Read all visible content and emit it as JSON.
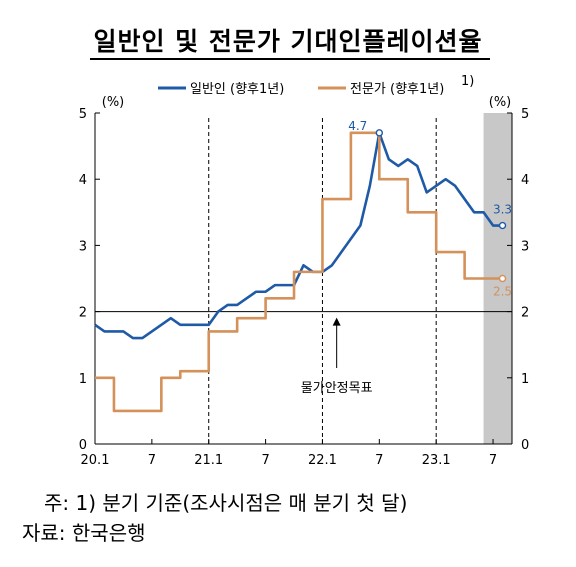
{
  "title": "일반인 및 전문가 기대인플레이션율",
  "notes": {
    "note1": "주: 1) 분기 기준(조사시점은 매 분기 첫 달)",
    "note2": "자료: 한국은행"
  },
  "colors": {
    "general": "#1f5aa6",
    "expert": "#d4915a",
    "shade": "#c8c8c8"
  },
  "chart_data": {
    "type": "line",
    "x_tick_labels": [
      "20.1",
      "7",
      "21.1",
      "7",
      "22.1",
      "7",
      "23.1",
      "7"
    ],
    "x_tick_months": [
      0,
      6,
      12,
      18,
      24,
      30,
      36,
      42
    ],
    "xlim_months": [
      0,
      44
    ],
    "ylim": [
      0,
      5
    ],
    "y_ticks": [
      "0",
      "1",
      "2",
      "3",
      "4",
      "5"
    ],
    "ylabel_left": "(%)",
    "ylabel_right": "(%)",
    "legend_position": "top",
    "reference_line": {
      "y": 2,
      "label": "물가안정목표"
    },
    "shaded_region_months": [
      41,
      44
    ],
    "series": [
      {
        "name": "일반인 (향후1년)",
        "step": false,
        "points": [
          [
            0,
            1.8
          ],
          [
            1,
            1.7
          ],
          [
            2,
            1.7
          ],
          [
            3,
            1.7
          ],
          [
            4,
            1.6
          ],
          [
            5,
            1.6
          ],
          [
            6,
            1.7
          ],
          [
            7,
            1.8
          ],
          [
            8,
            1.9
          ],
          [
            9,
            1.8
          ],
          [
            10,
            1.8
          ],
          [
            11,
            1.8
          ],
          [
            12,
            1.8
          ],
          [
            13,
            2.0
          ],
          [
            14,
            2.1
          ],
          [
            15,
            2.1
          ],
          [
            16,
            2.2
          ],
          [
            17,
            2.3
          ],
          [
            18,
            2.3
          ],
          [
            19,
            2.4
          ],
          [
            20,
            2.4
          ],
          [
            21,
            2.4
          ],
          [
            22,
            2.7
          ],
          [
            23,
            2.6
          ],
          [
            24,
            2.6
          ],
          [
            25,
            2.7
          ],
          [
            26,
            2.9
          ],
          [
            27,
            3.1
          ],
          [
            28,
            3.3
          ],
          [
            29,
            3.9
          ],
          [
            30,
            4.7
          ],
          [
            31,
            4.3
          ],
          [
            32,
            4.2
          ],
          [
            33,
            4.3
          ],
          [
            34,
            4.2
          ],
          [
            35,
            3.8
          ],
          [
            36,
            3.9
          ],
          [
            37,
            4.0
          ],
          [
            38,
            3.9
          ],
          [
            39,
            3.7
          ],
          [
            40,
            3.5
          ],
          [
            41,
            3.5
          ],
          [
            42,
            3.3
          ],
          [
            43,
            3.3
          ]
        ]
      },
      {
        "name": "전문가 (향후1년)",
        "superscript": "1)",
        "step": true,
        "points": [
          [
            0,
            1.0
          ],
          [
            2,
            0.5
          ],
          [
            7,
            1.0
          ],
          [
            9,
            1.1
          ],
          [
            12,
            1.7
          ],
          [
            15,
            1.9
          ],
          [
            18,
            2.2
          ],
          [
            21,
            2.6
          ],
          [
            24,
            3.7
          ],
          [
            27,
            4.7
          ],
          [
            30,
            4.0
          ],
          [
            33,
            3.5
          ],
          [
            36,
            2.9
          ],
          [
            39,
            2.5
          ],
          [
            42,
            2.5
          ],
          [
            43,
            2.5
          ]
        ]
      }
    ],
    "annotations": [
      {
        "text": "4.7",
        "month": 30,
        "value": 4.7,
        "series": 0
      },
      {
        "text": "3.3",
        "month": 43,
        "value": 3.3,
        "series": 0
      },
      {
        "text": "2.5",
        "month": 43,
        "value": 2.5,
        "series": 1
      }
    ]
  }
}
